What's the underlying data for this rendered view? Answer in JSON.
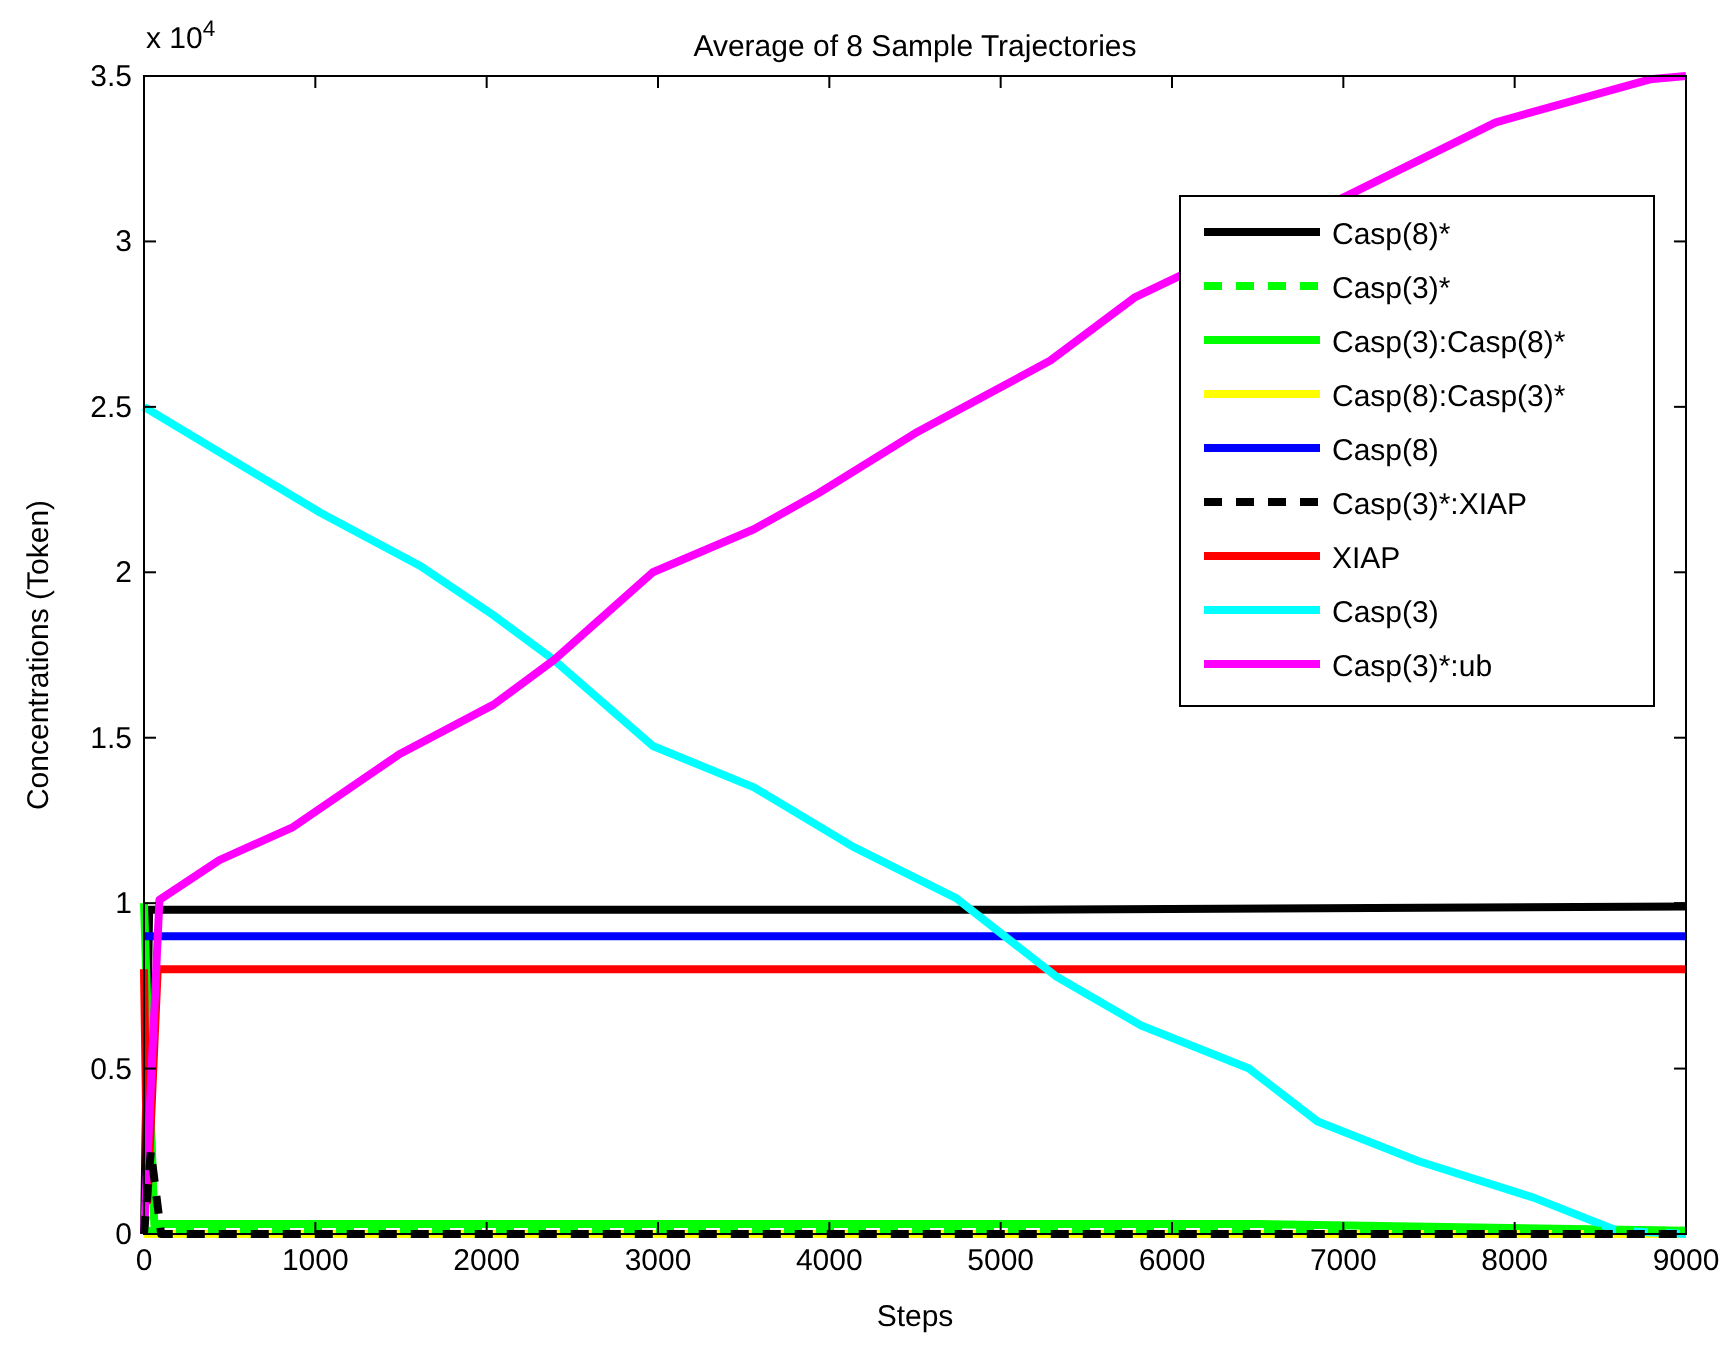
{
  "chart_data": {
    "type": "line",
    "title": "Average of 8 Sample Trajectories",
    "xlabel": "Steps",
    "ylabel": "Concentrations (Token)",
    "annotations": [
      "x 10$^{4}$"
    ],
    "xlim": [
      0,
      9000
    ],
    "xticks": [
      0,
      1000,
      2000,
      3000,
      4000,
      5000,
      6000,
      7000,
      8000,
      9000
    ],
    "ylim": [
      0,
      3.5
    ],
    "yticks": [
      0,
      0.5,
      1,
      1.5,
      2,
      2.5,
      3,
      3.5
    ],
    "grid": false,
    "legend": "top right",
    "marker": "none",
    "series": [
      {
        "name": "Casp(8)*",
        "color": "#000000",
        "line_style": "solid",
        "x": [
          0,
          30,
          5000,
          9000
        ],
        "values": [
          0,
          0.98,
          0.98,
          0.99
        ]
      },
      {
        "name": "Casp(3)*",
        "color": "#00ff00",
        "line_style": "dashed",
        "x": [
          0,
          9000
        ],
        "values": [
          0.01,
          0.01
        ]
      },
      {
        "name": "Casp(3):Casp(8)*",
        "color": "#00ff00",
        "line_style": "solid",
        "x": [
          0,
          60,
          6500,
          9000
        ],
        "values": [
          1.0,
          0.03,
          0.03,
          0.01
        ]
      },
      {
        "name": "Casp(8):Casp(3)*",
        "color": "#ffff00",
        "line_style": "solid",
        "x": [
          0,
          9000
        ],
        "values": [
          0,
          0
        ]
      },
      {
        "name": "Casp(8)",
        "color": "#0000ff",
        "line_style": "solid",
        "x": [
          0,
          9000
        ],
        "values": [
          0.9,
          0.9
        ]
      },
      {
        "name": "Casp(3)*:XIAP",
        "color": "#000000",
        "line_style": "dashed",
        "x": [
          0,
          40,
          100,
          9000
        ],
        "values": [
          0,
          0.25,
          0,
          0
        ]
      },
      {
        "name": "XIAP",
        "color": "#ff0000",
        "line_style": "solid",
        "x": [
          0,
          20,
          80,
          9000
        ],
        "values": [
          0.8,
          0.1,
          0.8,
          0.8
        ]
      },
      {
        "name": "Casp(3)",
        "color": "#00ffff",
        "line_style": "solid",
        "x": [
          0,
          1030,
          1610,
          2040,
          2393,
          2970,
          3560,
          4140,
          4740,
          5320,
          5820,
          6450,
          6850,
          7440,
          8110,
          8600,
          9000
        ],
        "values": [
          2.5,
          2.18,
          2.02,
          1.87,
          1.735,
          1.475,
          1.35,
          1.17,
          1.015,
          0.78,
          0.63,
          0.5,
          0.34,
          0.22,
          0.11,
          0.01,
          0
        ]
      },
      {
        "name": "Casp(3)*:ub",
        "color": "#ff00ff",
        "line_style": "solid",
        "x": [
          0,
          90,
          440,
          870,
          1490,
          2040,
          2393,
          2970,
          3560,
          3940,
          4500,
          5290,
          5780,
          6990,
          7890,
          8790,
          9000
        ],
        "values": [
          0,
          1.01,
          1.13,
          1.23,
          1.45,
          1.6,
          1.735,
          2.0,
          2.13,
          2.24,
          2.42,
          2.64,
          2.83,
          3.13,
          3.36,
          3.49,
          3.5
        ]
      }
    ]
  }
}
